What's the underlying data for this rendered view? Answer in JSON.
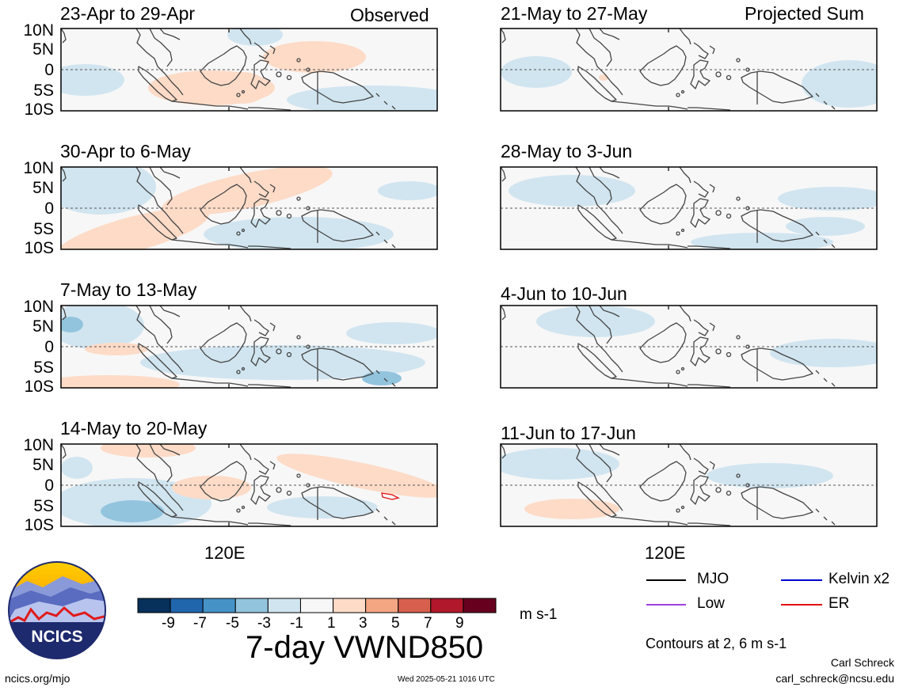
{
  "headers": {
    "left": "Observed",
    "right": "Projected Sum"
  },
  "panels": [
    {
      "id": "obs1",
      "title": "23-Apr to 29-Apr"
    },
    {
      "id": "obs2",
      "title": "30-Apr to 6-May"
    },
    {
      "id": "obs3",
      "title": "7-May to 13-May"
    },
    {
      "id": "obs4",
      "title": "14-May to 20-May"
    },
    {
      "id": "prj1",
      "title": "21-May to 27-May"
    },
    {
      "id": "prj2",
      "title": "28-May to 3-Jun"
    },
    {
      "id": "prj3",
      "title": "4-Jun to 10-Jun"
    },
    {
      "id": "prj4",
      "title": "11-Jun to 17-Jun"
    }
  ],
  "lat_labels": [
    "10N",
    "5N",
    "0",
    "5S",
    "10S"
  ],
  "lon_label": "120E",
  "colorbar": {
    "labels": [
      "-9",
      "-7",
      "-5",
      "-3",
      "-1",
      "1",
      "3",
      "5",
      "7",
      "9"
    ],
    "units": "m s-1",
    "colors": [
      "#07305a",
      "#2066ad",
      "#4593c6",
      "#93c4de",
      "#d1e5f0",
      "#f7f7f7",
      "#fddbc7",
      "#f4a582",
      "#d6604d",
      "#b2182b",
      "#67001f"
    ]
  },
  "main_title": "7-day VWND850",
  "legend": [
    {
      "label": "MJO",
      "color": "#000000"
    },
    {
      "label": "Kelvin x2",
      "color": "#0000cc"
    },
    {
      "label": "Low",
      "color": "#a040e0"
    },
    {
      "label": "ER",
      "color": "#e01010"
    }
  ],
  "contours_note": "Contours at 2, 6 m s-1",
  "author": "Carl Schreck",
  "email": "carl_schreck@ncsu.edu",
  "website": "ncics.org/mjo",
  "timestamp": "Wed 2025-05-21 1016 UTC",
  "logo_text": "NCICS"
}
